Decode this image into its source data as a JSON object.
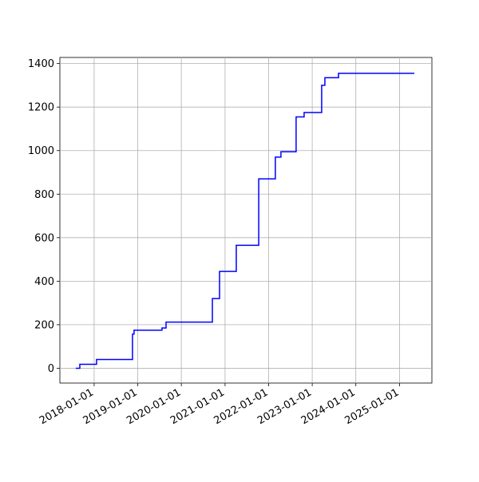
{
  "chart_data": {
    "type": "line",
    "drawstyle": "steps-post",
    "x": [
      "2017-07-31",
      "2017-09-03",
      "2018-01-21",
      "2018-11-18",
      "2018-12-01",
      "2019-07-23",
      "2019-08-26",
      "2020-09-17",
      "2020-11-16",
      "2021-04-05",
      "2021-10-10",
      "2022-02-26",
      "2022-04-14",
      "2022-08-19",
      "2022-10-25",
      "2023-03-21",
      "2023-04-17",
      "2023-08-09",
      "2025-05-05"
    ],
    "series": [
      {
        "color": "#0000ff",
        "values": [
          0,
          18,
          40,
          157,
          175,
          185,
          212,
          320,
          445,
          565,
          870,
          970,
          995,
          1155,
          1175,
          1300,
          1335,
          1355,
          1355
        ]
      }
    ],
    "xlim": [
      "2017-03-20",
      "2025-09-29"
    ],
    "xticks": [
      "2018-01-01",
      "2019-01-01",
      "2020-01-01",
      "2021-01-01",
      "2022-01-01",
      "2023-01-01",
      "2024-01-01",
      "2025-01-01"
    ],
    "ylim": [
      -68,
      1428
    ],
    "yticks": [
      0,
      200,
      400,
      600,
      800,
      1000,
      1200,
      1400
    ],
    "grid": true
  }
}
